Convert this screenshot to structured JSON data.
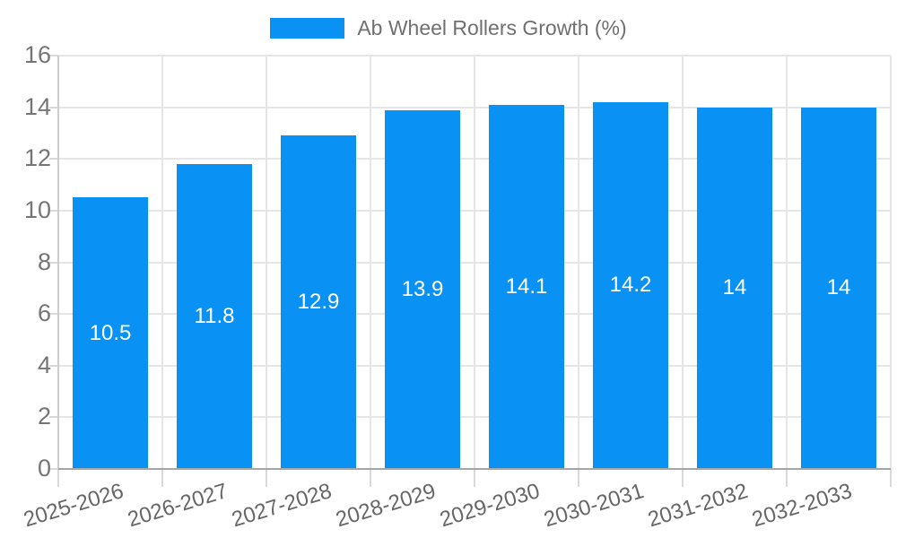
{
  "chart_data": {
    "type": "bar",
    "title": "",
    "legend_label": "Ab Wheel Rollers Growth (%)",
    "legend_position": "top",
    "categories": [
      "2025-2026",
      "2026-2027",
      "2027-2028",
      "2028-2029",
      "2029-2030",
      "2030-2031",
      "2031-2032",
      "2032-2033"
    ],
    "values": [
      10.5,
      11.8,
      12.9,
      13.9,
      14.1,
      14.2,
      14,
      14
    ],
    "bar_labels": [
      "10.5",
      "11.8",
      "12.9",
      "13.9",
      "14.1",
      "14.2",
      "14",
      "14"
    ],
    "xlabel": "",
    "ylabel": "",
    "ylim": [
      0,
      16
    ],
    "yticks": [
      0,
      2,
      4,
      6,
      8,
      10,
      12,
      14,
      16
    ],
    "grid": true,
    "colors": {
      "bar": "#0991f3",
      "grid_line": "#e6e6e6",
      "baseline": "#a6a6a6",
      "tick": "#d9d9d9",
      "y_label_text": "#757575",
      "x_label_text": "#666666",
      "value_label_text": "#ffffff",
      "legend_text": "#6f6f6f",
      "background": "#ffffff"
    }
  }
}
